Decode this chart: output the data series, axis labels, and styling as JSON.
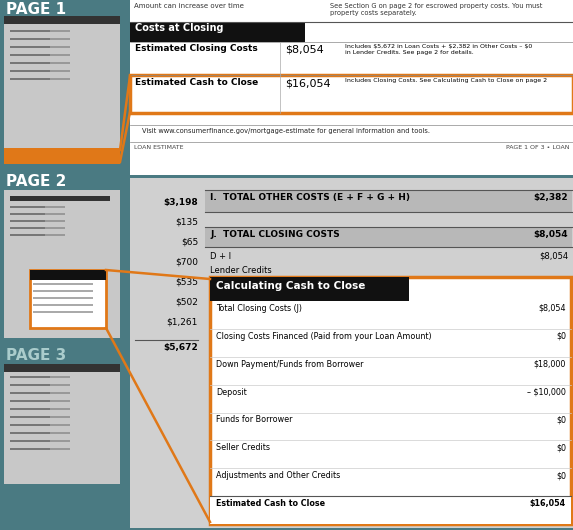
{
  "bg_color": "#4a7a82",
  "page_bg": "#c8c8c8",
  "white": "#ffffff",
  "black": "#000000",
  "orange": "#e07818",
  "dark_header": "#111111",
  "light_gray": "#d0d0d0",
  "mid_gray": "#b8b8b8",
  "row_sep": "#aaaaaa",
  "page1_label": "PAGE 1",
  "page2_label": "PAGE 2",
  "page3_label": "PAGE 3",
  "p1_costs_header": "Costs at Closing",
  "p1_row1_label": "Estimated Closing Costs",
  "p1_row1_val": "$8,054",
  "p1_row1_note": "Includes $5,672 in Loan Costs + $2,382 in Other Costs – $0\nin Lender Credits. See page 2 for details.",
  "p1_row2_label": "Estimated Cash to Close",
  "p1_row2_val": "$16,054",
  "p1_row2_note": "Includes Closing Costs. See Calculating Cash to Close on page 2",
  "p1_top_left": "Amount can increase over time",
  "p1_top_right": "See Section G on page 2 for escrowed property costs. You must\nproperty costs separately.",
  "p1_footer_center": "Visit www.consumerfinance.gov/mortgage-estimate for general information and tools.",
  "p1_footer_left": "LOAN ESTIMATE",
  "p1_footer_right": "PAGE 1 OF 3 • LOAN",
  "p2_total_other": "I.  TOTAL OTHER COSTS (E + F + G + H)",
  "p2_total_other_val": "$2,382",
  "p2_total_closing": "J.  TOTAL CLOSING COSTS",
  "p2_total_closing_val": "$8,054",
  "p2_di_label": "D + I",
  "p2_di_val": "$8,054",
  "p2_lender": "Lender Credits",
  "p2_left_amounts": [
    "$3,198",
    "$135",
    "$65",
    "$700",
    "$535",
    "$502",
    "$1,261"
  ],
  "p2_bottom_amount": "$5,672",
  "calc_header": "Calculating Cash to Close",
  "calc_rows": [
    [
      "Total Closing Costs (J)",
      "$8,054"
    ],
    [
      "Closing Costs Financed (Paid from your Loan Amount)",
      "$0"
    ],
    [
      "Down Payment/Funds from Borrower",
      "$18,000"
    ],
    [
      "Deposit",
      "– $10,000"
    ],
    [
      "Funds for Borrower",
      "$0"
    ],
    [
      "Seller Credits",
      "$0"
    ],
    [
      "Adjustments and Other Credits",
      "$0"
    ],
    [
      "Estimated Cash to Close",
      "$16,054"
    ]
  ]
}
